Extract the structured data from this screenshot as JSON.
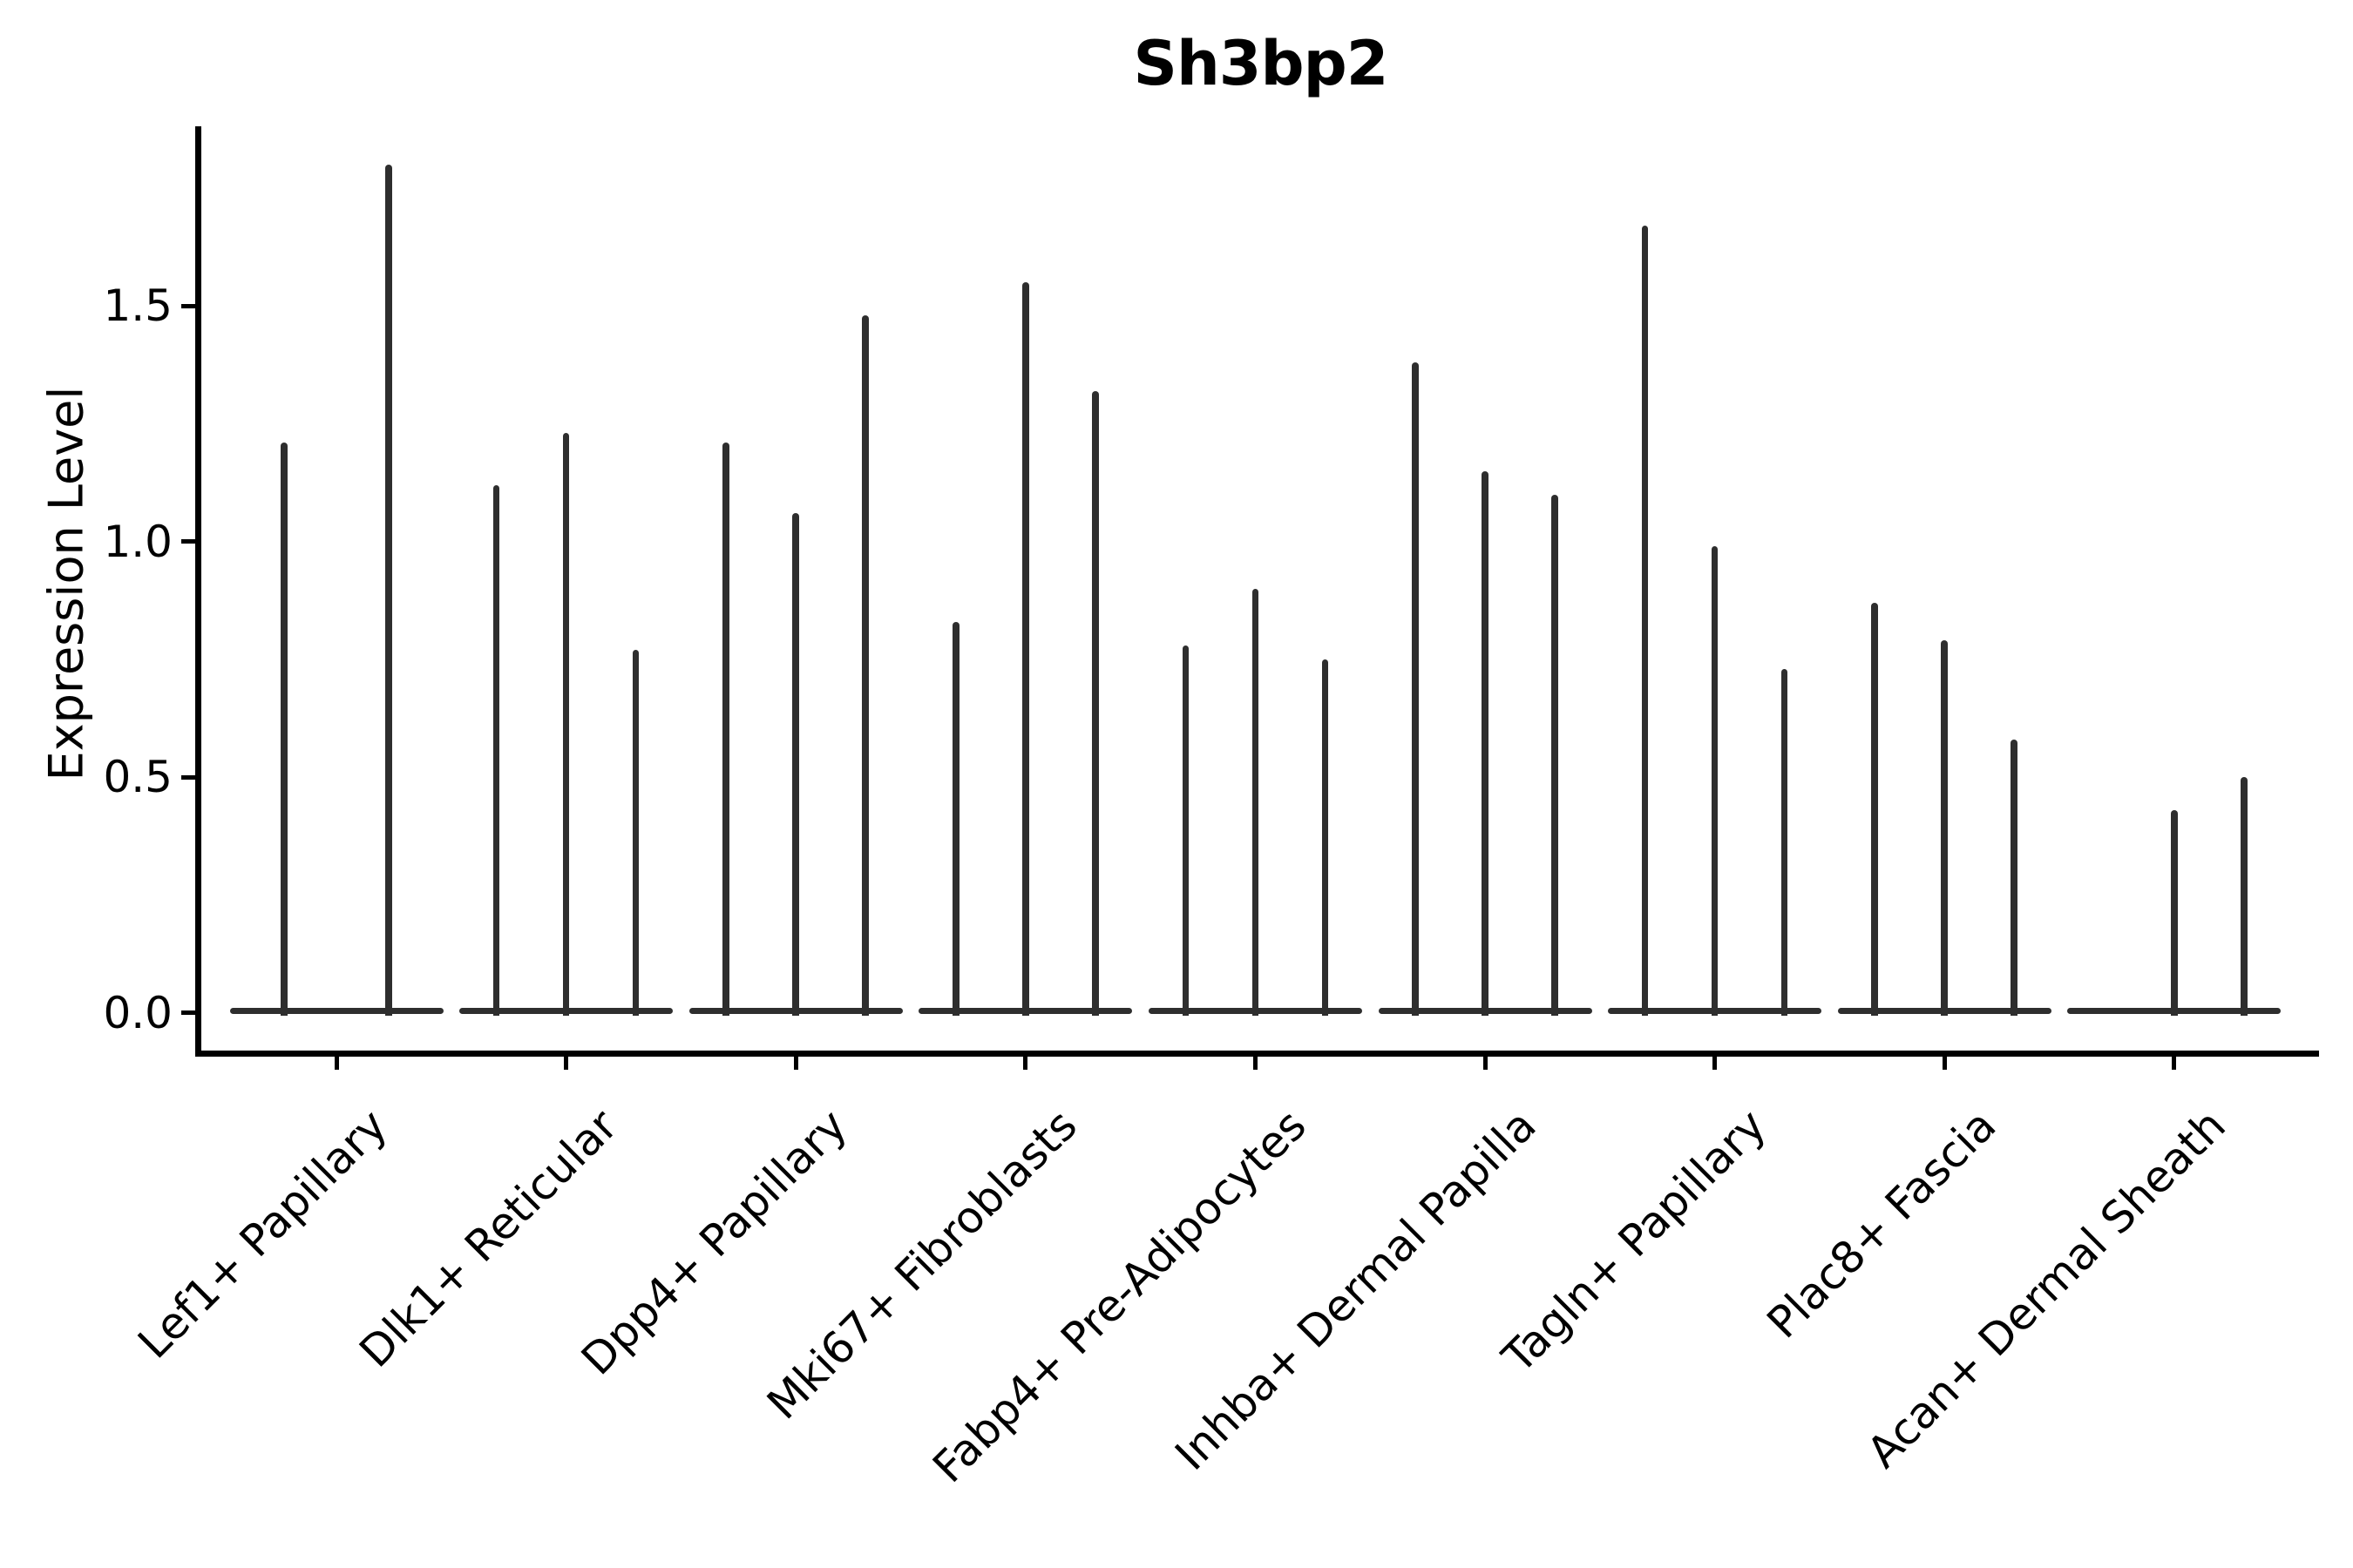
{
  "title": "Sh3bp2",
  "ylabel": "Expression Level",
  "chart_data": {
    "type": "violin",
    "title": "Sh3bp2",
    "xlabel": "",
    "ylabel": "Expression Level",
    "ylim": [
      -0.09,
      1.88
    ],
    "yticks": [
      0.0,
      0.5,
      1.0,
      1.5
    ],
    "ytick_labels": [
      "0.0",
      "0.5",
      "1.0",
      "1.5"
    ],
    "grid": false,
    "legend": "none",
    "colors": {
      "violin": "#2e2e2e",
      "axis": "#000000",
      "text": "#000000",
      "background": "#ffffff"
    },
    "categories": [
      "Lef1+ Papillary",
      "Dlk1+ Reticular",
      "Dpp4+ Papillary",
      "Mki67+ Fibroblasts",
      "Fabp4+ Pre-Adipocytes",
      "Inhba+ Dermal Papilla",
      "Tagln+ Papillary",
      "Plac8+ Fascia",
      "Acan+ Dermal Sheath"
    ],
    "groups": [
      {
        "label": "Lef1+ Papillary",
        "n_slots": 2,
        "violins": [
          {
            "slot": 0,
            "max": 1.21
          },
          {
            "slot": 1,
            "max": 1.8
          }
        ]
      },
      {
        "label": "Dlk1+ Reticular",
        "n_slots": 3,
        "violins": [
          {
            "slot": 0,
            "max": 1.12
          },
          {
            "slot": 1,
            "max": 1.23
          },
          {
            "slot": 2,
            "max": 0.77
          }
        ]
      },
      {
        "label": "Dpp4+ Papillary",
        "n_slots": 3,
        "violins": [
          {
            "slot": 0,
            "max": 1.21
          },
          {
            "slot": 1,
            "max": 1.06
          },
          {
            "slot": 2,
            "max": 1.48
          }
        ]
      },
      {
        "label": "Mki67+ Fibroblasts",
        "n_slots": 3,
        "violins": [
          {
            "slot": 0,
            "max": 0.83
          },
          {
            "slot": 1,
            "max": 1.55
          },
          {
            "slot": 2,
            "max": 1.32
          }
        ]
      },
      {
        "label": "Fabp4+ Pre-Adipocytes",
        "n_slots": 3,
        "violins": [
          {
            "slot": 0,
            "max": 0.78
          },
          {
            "slot": 1,
            "max": 0.9
          },
          {
            "slot": 2,
            "max": 0.75
          }
        ]
      },
      {
        "label": "Inhba+ Dermal Papilla",
        "n_slots": 3,
        "violins": [
          {
            "slot": 0,
            "max": 1.38
          },
          {
            "slot": 1,
            "max": 1.15
          },
          {
            "slot": 2,
            "max": 1.1
          }
        ]
      },
      {
        "label": "Tagln+ Papillary",
        "n_slots": 3,
        "violins": [
          {
            "slot": 0,
            "max": 1.67
          },
          {
            "slot": 1,
            "max": 0.99
          },
          {
            "slot": 2,
            "max": 0.73
          }
        ]
      },
      {
        "label": "Plac8+ Fascia",
        "n_slots": 3,
        "violins": [
          {
            "slot": 0,
            "max": 0.87
          },
          {
            "slot": 1,
            "max": 0.79
          },
          {
            "slot": 2,
            "max": 0.58
          }
        ]
      },
      {
        "label": "Acan+ Dermal Sheath",
        "n_slots": 3,
        "violins": [
          {
            "slot": 1,
            "max": 0.43
          },
          {
            "slot": 2,
            "max": 0.5
          }
        ]
      }
    ]
  }
}
